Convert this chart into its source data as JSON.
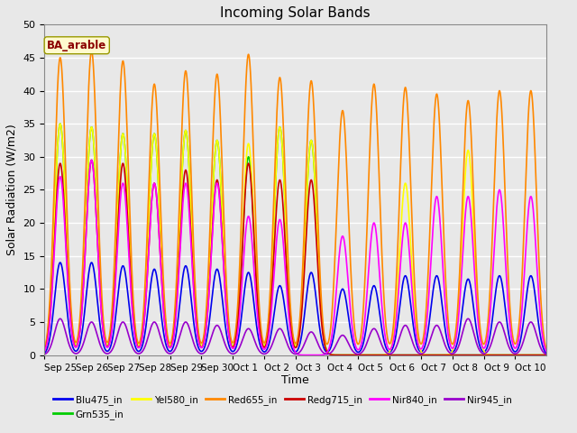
{
  "title": "Incoming Solar Bands",
  "xlabel": "Time",
  "ylabel": "Solar Radiation (W/m2)",
  "annotation": "BA_arable",
  "ylim": [
    0,
    50
  ],
  "series_order": [
    "Blu475_in",
    "Grn535_in",
    "Yel580_in",
    "Red655_in",
    "Redg715_in",
    "Nir840_in",
    "Nir945_in"
  ],
  "series": {
    "Blu475_in": {
      "color": "#0000EE",
      "lw": 1.2
    },
    "Grn535_in": {
      "color": "#00CC00",
      "lw": 1.2
    },
    "Yel580_in": {
      "color": "#FFFF00",
      "lw": 1.2
    },
    "Red655_in": {
      "color": "#FF8800",
      "lw": 1.2
    },
    "Redg715_in": {
      "color": "#CC0000",
      "lw": 1.2
    },
    "Nir840_in": {
      "color": "#FF00FF",
      "lw": 1.2
    },
    "Nir945_in": {
      "color": "#9900CC",
      "lw": 1.2
    }
  },
  "xtick_labels": [
    "Sep 25",
    "Sep 26",
    "Sep 27",
    "Sep 28",
    "Sep 29",
    "Sep 30",
    "Oct 1",
    "Oct 2",
    "Oct 3",
    "Oct 4",
    "Oct 5",
    "Oct 6",
    "Oct 7",
    "Oct 8",
    "Oct 9",
    "Oct 10"
  ],
  "num_days": 16,
  "peaks": {
    "Blu475_in": [
      14.0,
      14.0,
      13.5,
      13.0,
      13.5,
      13.0,
      12.5,
      10.5,
      12.5,
      10.0,
      10.5,
      12.0,
      12.0,
      11.5,
      12.0,
      12.0
    ],
    "Grn535_in": [
      35.0,
      34.5,
      33.5,
      33.5,
      34.0,
      32.5,
      30.0,
      34.5,
      32.5,
      0.0,
      0.0,
      0.0,
      0.0,
      0.0,
      0.0,
      0.0
    ],
    "Yel580_in": [
      35.0,
      34.5,
      33.5,
      33.5,
      34.0,
      32.5,
      32.0,
      34.5,
      32.5,
      0.0,
      0.0,
      26.0,
      0.0,
      31.0,
      0.0,
      0.0
    ],
    "Red655_in": [
      45.0,
      46.0,
      44.5,
      41.0,
      43.0,
      42.5,
      45.5,
      42.0,
      41.5,
      37.0,
      41.0,
      40.5,
      39.5,
      38.5,
      40.0,
      40.0
    ],
    "Redg715_in": [
      29.0,
      29.5,
      29.0,
      26.0,
      28.0,
      26.5,
      29.0,
      26.5,
      26.5,
      0.0,
      0.0,
      0.0,
      0.0,
      0.0,
      0.0,
      0.0
    ],
    "Nir840_in": [
      27.0,
      29.5,
      26.0,
      26.0,
      26.0,
      26.0,
      21.0,
      20.5,
      0.0,
      18.0,
      20.0,
      20.0,
      24.0,
      24.0,
      25.0,
      24.0
    ],
    "Nir945_in": [
      5.5,
      5.0,
      5.0,
      5.0,
      5.0,
      4.5,
      4.0,
      4.0,
      3.5,
      3.0,
      4.0,
      4.5,
      4.5,
      5.5,
      5.0,
      5.0
    ]
  },
  "sigma": 0.18,
  "bg_color": "#E8E8E8",
  "fig_bg_color": "#E8E8E8",
  "grid_color": "#FFFFFF",
  "yticks": [
    0,
    5,
    10,
    15,
    20,
    25,
    30,
    35,
    40,
    45,
    50
  ]
}
